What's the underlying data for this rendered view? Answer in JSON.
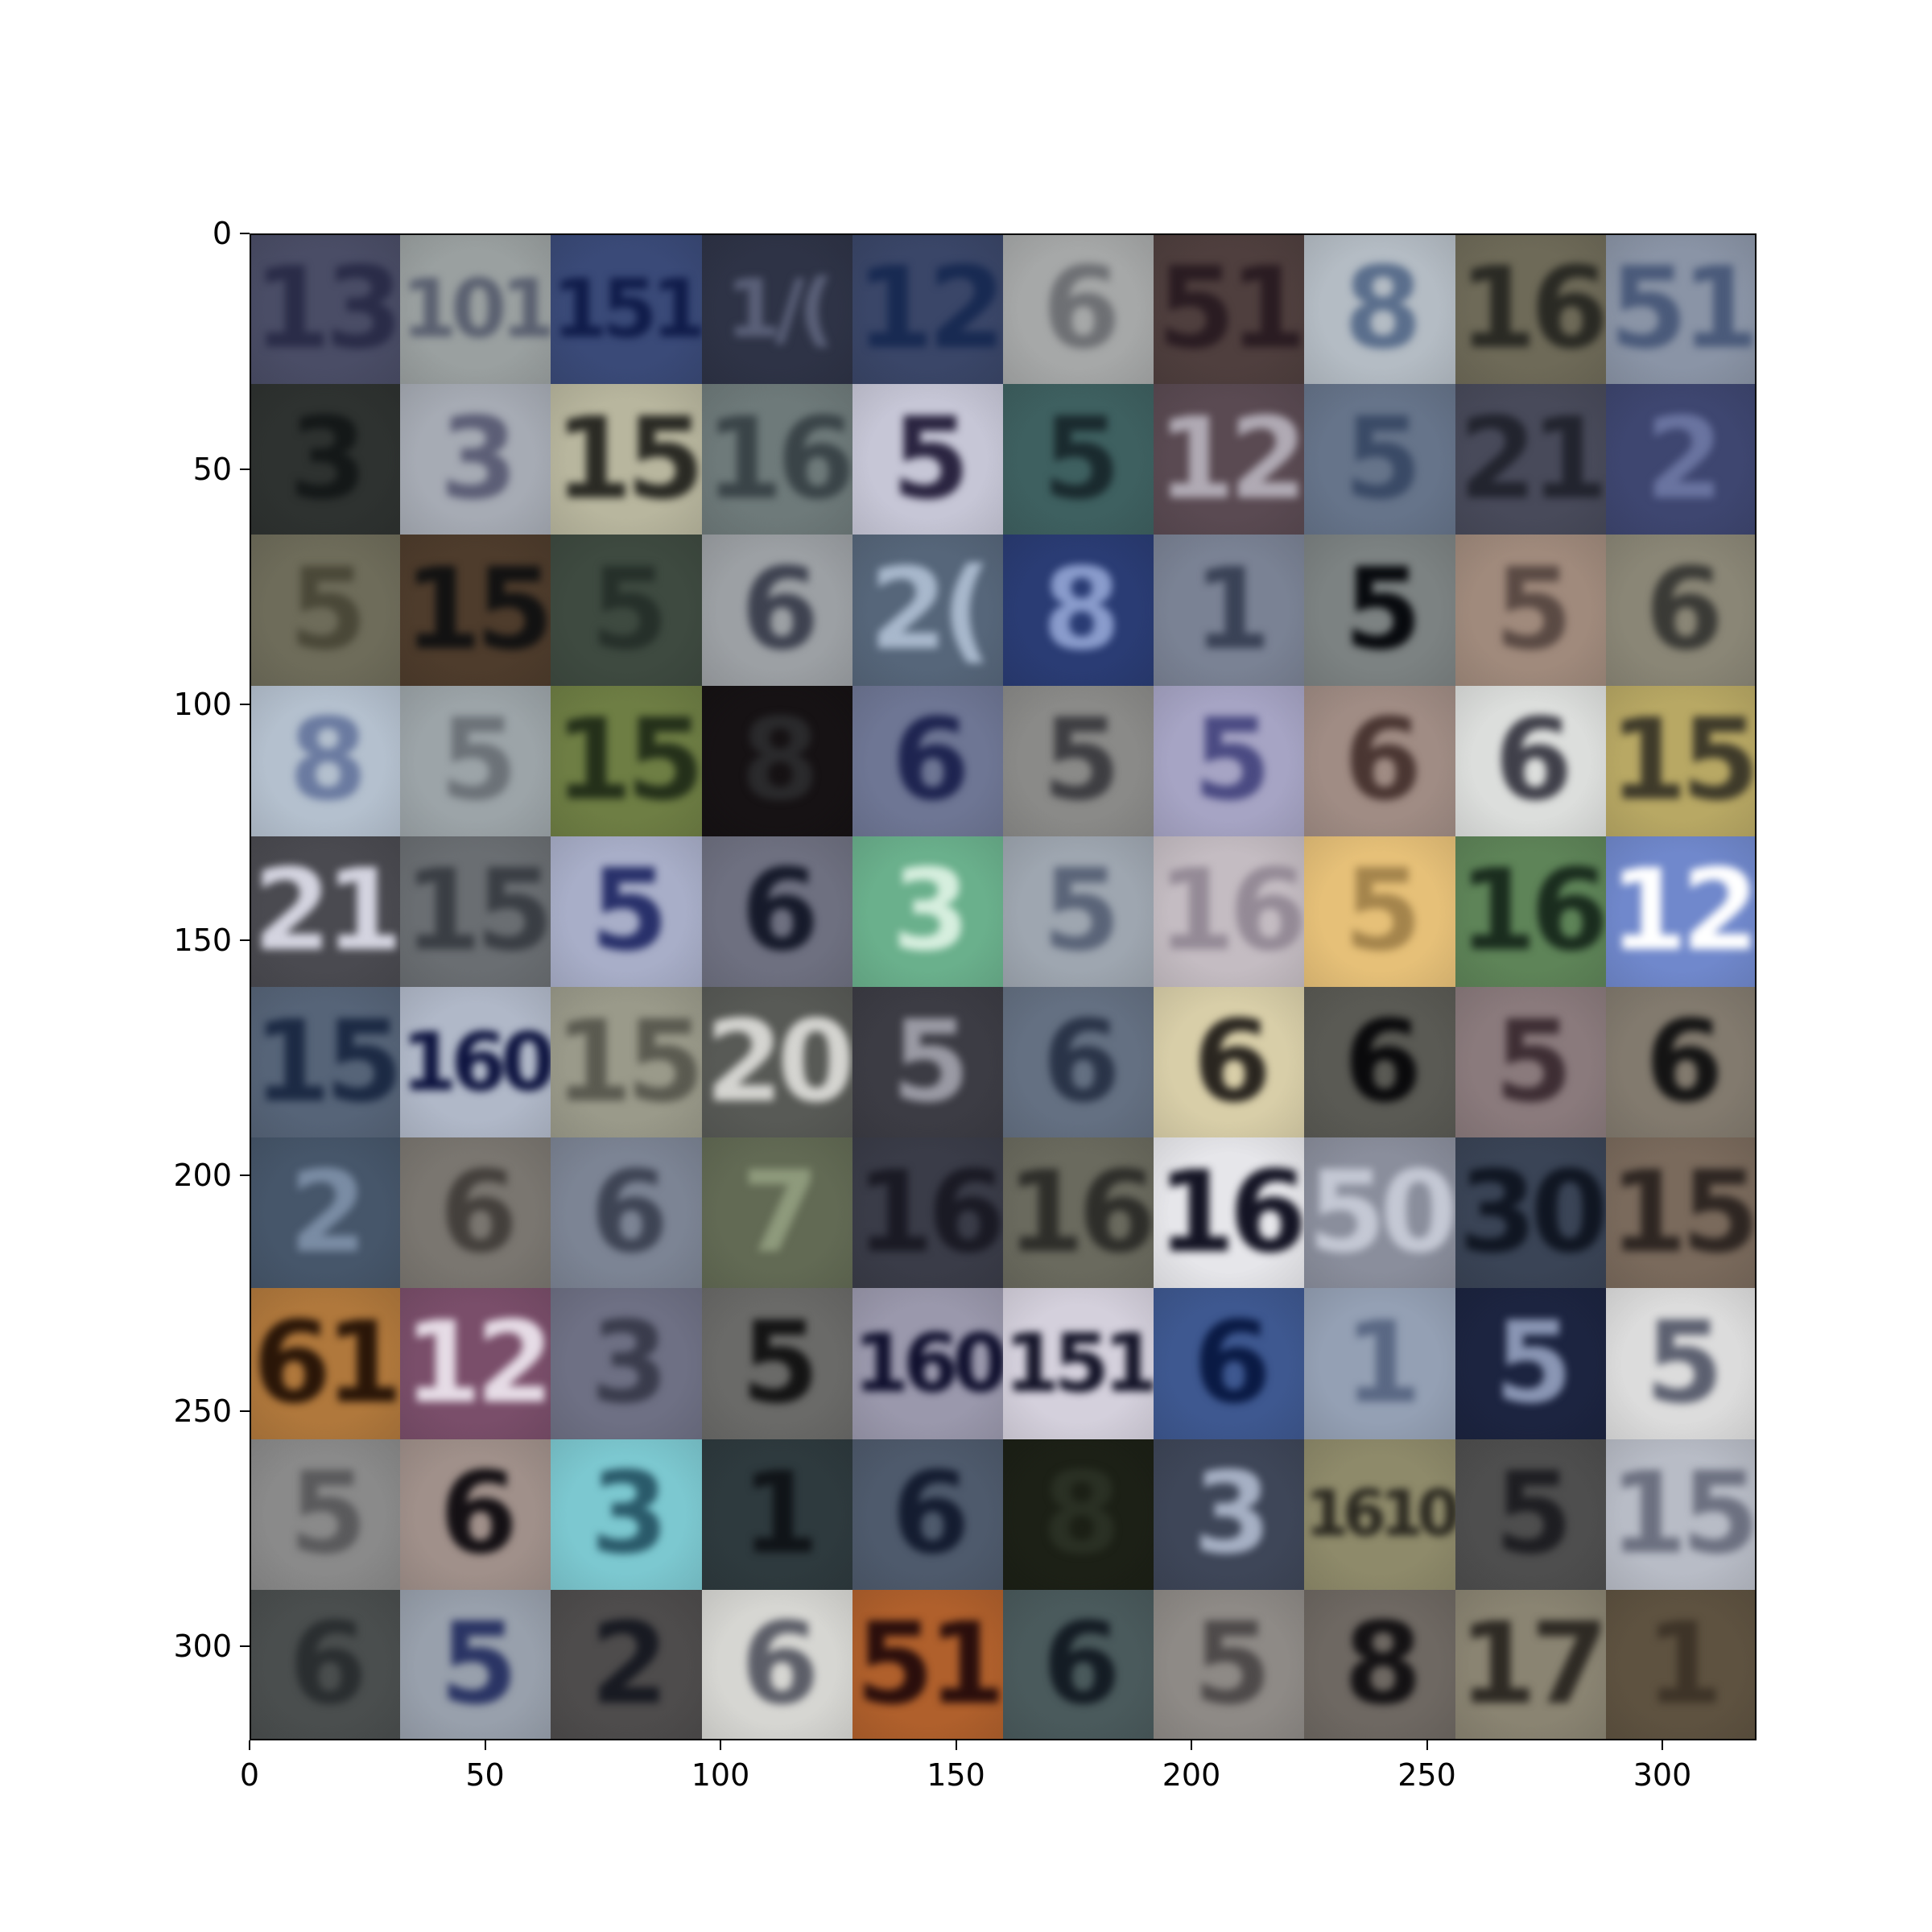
{
  "image": {
    "rows": 10,
    "cols": 10,
    "description_colors_note": "dominant background and digit colors per tile",
    "tiles": [
      [
        {
          "digits": "13",
          "bg": "#4a4d66",
          "fg": "#2a2c48"
        },
        {
          "digits": "101",
          "bg": "#9aa0a0",
          "fg": "#5a6070"
        },
        {
          "digits": "151",
          "bg": "#3a4a78",
          "fg": "#101c4a"
        },
        {
          "digits": "1/(",
          "bg": "#2e3346",
          "fg": "#5a6078"
        },
        {
          "digits": "12",
          "bg": "#3a4668",
          "fg": "#182a52"
        },
        {
          "digits": "6",
          "bg": "#a6a8a8",
          "fg": "#6e7074"
        },
        {
          "digits": "51",
          "bg": "#4f3f3e",
          "fg": "#2a1c22"
        },
        {
          "digits": "8",
          "bg": "#b4bcc4",
          "fg": "#5a6e8c"
        },
        {
          "digits": "16",
          "bg": "#6e6a58",
          "fg": "#2a2a24"
        },
        {
          "digits": "51",
          "bg": "#8a94a6",
          "fg": "#4a5a7a"
        }
      ],
      [
        {
          "digits": "3",
          "bg": "#2e3230",
          "fg": "#141818"
        },
        {
          "digits": "3",
          "bg": "#a6abb4",
          "fg": "#5c5e76"
        },
        {
          "digits": "15",
          "bg": "#b8b69e",
          "fg": "#2a2a24"
        },
        {
          "digits": "16",
          "bg": "#6e7a7a",
          "fg": "#3a4448"
        },
        {
          "digits": "5",
          "bg": "#c6c6d6",
          "fg": "#2a2440"
        },
        {
          "digits": "5",
          "bg": "#3e6060",
          "fg": "#1a2a2e"
        },
        {
          "digits": "12",
          "bg": "#5a4a52",
          "fg": "#b0aab4"
        },
        {
          "digits": "5",
          "bg": "#66748a",
          "fg": "#3a4a66"
        },
        {
          "digits": "21",
          "bg": "#484a5a",
          "fg": "#22242e"
        },
        {
          "digits": "2",
          "bg": "#3e4670",
          "fg": "#6a74a0"
        }
      ],
      [
        {
          "digits": "5",
          "bg": "#6e6c5a",
          "fg": "#4a4838"
        },
        {
          "digits": "15",
          "bg": "#4e3c2c",
          "fg": "#121212"
        },
        {
          "digits": "5",
          "bg": "#3e4a40",
          "fg": "#26302a"
        },
        {
          "digits": "6",
          "bg": "#9ca0a4",
          "fg": "#3e4250"
        },
        {
          "digits": "2(",
          "bg": "#56667a",
          "fg": "#a8b8cc"
        },
        {
          "digits": "8",
          "bg": "#2a3c74",
          "fg": "#8a9ccc"
        },
        {
          "digits": "1",
          "bg": "#7a8294",
          "fg": "#3a4256"
        },
        {
          "digits": "5",
          "bg": "#7c8282",
          "fg": "#080a0e"
        },
        {
          "digits": "5",
          "bg": "#a08a7c",
          "fg": "#5a4a44"
        },
        {
          "digits": "6",
          "bg": "#8a8676",
          "fg": "#3a3a36"
        }
      ],
      [
        {
          "digits": "8",
          "bg": "#b4c0ce",
          "fg": "#6a7aa0"
        },
        {
          "digits": "5",
          "bg": "#9ca4a8",
          "fg": "#6c7278"
        },
        {
          "digits": "15",
          "bg": "#6e7e44",
          "fg": "#24301a"
        },
        {
          "digits": "8",
          "bg": "#161214",
          "fg": "#2a2a2c"
        },
        {
          "digits": "6",
          "bg": "#6e7694",
          "fg": "#1e2450"
        },
        {
          "digits": "5",
          "bg": "#8a8a88",
          "fg": "#3e3e42"
        },
        {
          "digits": "5",
          "bg": "#a6a4c4",
          "fg": "#4a4a82"
        },
        {
          "digits": "6",
          "bg": "#a08c84",
          "fg": "#4a3632"
        },
        {
          "digits": "6",
          "bg": "#dcdedc",
          "fg": "#40404a"
        },
        {
          "digits": "15",
          "bg": "#b8a864",
          "fg": "#3e3a2a"
        }
      ],
      [
        {
          "digits": "21",
          "bg": "#4a4a50",
          "fg": "#d4d4e0"
        },
        {
          "digits": "15",
          "bg": "#6a6e72",
          "fg": "#3a3e44"
        },
        {
          "digits": "5",
          "bg": "#a8aec8",
          "fg": "#28306a"
        },
        {
          "digits": "6",
          "bg": "#6e7080",
          "fg": "#161a2a"
        },
        {
          "digits": "3",
          "bg": "#6ab08c",
          "fg": "#d6eede"
        },
        {
          "digits": "5",
          "bg": "#9ea6b0",
          "fg": "#5a6478"
        },
        {
          "digits": "16",
          "bg": "#c4bcc2",
          "fg": "#948a96"
        },
        {
          "digits": "5",
          "bg": "#e6c078",
          "fg": "#a4844c"
        },
        {
          "digits": "16",
          "bg": "#5e8458",
          "fg": "#1a2c1e"
        },
        {
          "digits": "12",
          "bg": "#7088cc",
          "fg": "#ffffff"
        }
      ],
      [
        {
          "digits": "15",
          "bg": "#566478",
          "fg": "#1c2a44"
        },
        {
          "digits": "160",
          "bg": "#b0b8c8",
          "fg": "#0e1440"
        },
        {
          "digits": "15",
          "bg": "#9a9a8a",
          "fg": "#5a5a50"
        },
        {
          "digits": "20",
          "bg": "#585a56",
          "fg": "#d4d4d0"
        },
        {
          "digits": "5",
          "bg": "#3c3c44",
          "fg": "#9a9aa4"
        },
        {
          "digits": "6",
          "bg": "#647082",
          "fg": "#2a3448"
        },
        {
          "digits": "6",
          "bg": "#d8cea8",
          "fg": "#2a2620"
        },
        {
          "digits": "6",
          "bg": "#5a5a54",
          "fg": "#0a0a0c"
        },
        {
          "digits": "5",
          "bg": "#8a7a7c",
          "fg": "#3e2e34"
        },
        {
          "digits": "6",
          "bg": "#827a6e",
          "fg": "#141414"
        }
      ],
      [
        {
          "digits": "2",
          "bg": "#46566a",
          "fg": "#7a8ca4"
        },
        {
          "digits": "6",
          "bg": "#7a7670",
          "fg": "#44403c"
        },
        {
          "digits": "6",
          "bg": "#7c8494",
          "fg": "#3e4454"
        },
        {
          "digits": "7",
          "bg": "#626a54",
          "fg": "#8e9a7c"
        },
        {
          "digits": "16",
          "bg": "#3a3c48",
          "fg": "#1a1a24"
        },
        {
          "digits": "16",
          "bg": "#6a6a5e",
          "fg": "#2e2e2a"
        },
        {
          "digits": "16",
          "bg": "#e6e6ea",
          "fg": "#141424"
        },
        {
          "digits": "50",
          "bg": "#8a8e9c",
          "fg": "#c4c8d4"
        },
        {
          "digits": "30",
          "bg": "#3a4456",
          "fg": "#101622"
        },
        {
          "digits": "15",
          "bg": "#7a6a5c",
          "fg": "#2e2622"
        }
      ],
      [
        {
          "digits": "61",
          "bg": "#b0783c",
          "fg": "#2a1608"
        },
        {
          "digits": "12",
          "bg": "#7a4e6a",
          "fg": "#e6dce6"
        },
        {
          "digits": "3",
          "bg": "#6e7084",
          "fg": "#3a3c4c"
        },
        {
          "digits": "5",
          "bg": "#6a6a68",
          "fg": "#141414"
        },
        {
          "digits": "160",
          "bg": "#9a98ac",
          "fg": "#10102e"
        },
        {
          "digits": "151",
          "bg": "#d4d0dc",
          "fg": "#141428"
        },
        {
          "digits": "6",
          "bg": "#3e5890",
          "fg": "#0a1a44"
        },
        {
          "digits": "1",
          "bg": "#94a0b4",
          "fg": "#5a6884"
        },
        {
          "digits": "5",
          "bg": "#1c2440",
          "fg": "#8a96b4"
        },
        {
          "digits": "5",
          "bg": "#dcdcdc",
          "fg": "#5c6070"
        }
      ],
      [
        {
          "digits": "5",
          "bg": "#8a8a8a",
          "fg": "#5a5a5c"
        },
        {
          "digits": "6",
          "bg": "#a0908a",
          "fg": "#141014"
        },
        {
          "digits": "3",
          "bg": "#7cc8d0",
          "fg": "#2a5a6a"
        },
        {
          "digits": "1",
          "bg": "#2e3a3e",
          "fg": "#101418"
        },
        {
          "digits": "6",
          "bg": "#4e5a6c",
          "fg": "#141c30"
        },
        {
          "digits": "8",
          "bg": "#1c2016",
          "fg": "#2a3024"
        },
        {
          "digits": "3",
          "bg": "#3e4658",
          "fg": "#a6b0c4"
        },
        {
          "digits": "1610",
          "bg": "#8e8a6a",
          "fg": "#2a2820"
        },
        {
          "digits": "5",
          "bg": "#4e4e4e",
          "fg": "#1e1e22"
        },
        {
          "digits": "15",
          "bg": "#b8bcc6",
          "fg": "#6c7080"
        }
      ],
      [
        {
          "digits": "6",
          "bg": "#4a4e4e",
          "fg": "#2a2e30"
        },
        {
          "digits": "5",
          "bg": "#98a0ac",
          "fg": "#2a3464"
        },
        {
          "digits": "2",
          "bg": "#4e4c4c",
          "fg": "#181a22"
        },
        {
          "digits": "6",
          "bg": "#d6d6d2",
          "fg": "#5c5e68"
        },
        {
          "digits": "51",
          "bg": "#b0602c",
          "fg": "#2a0e0c"
        },
        {
          "digits": "6",
          "bg": "#4a5a5c",
          "fg": "#141c24"
        },
        {
          "digits": "5",
          "bg": "#8e8a86",
          "fg": "#4e4a4a"
        },
        {
          "digits": "8",
          "bg": "#6e6862",
          "fg": "#141214"
        },
        {
          "digits": "17",
          "bg": "#8a8472",
          "fg": "#2e2a24"
        },
        {
          "digits": "1",
          "bg": "#5e5240",
          "fg": "#3e3428"
        }
      ]
    ]
  },
  "axes": {
    "xlim": [
      0,
      320
    ],
    "ylim": [
      320,
      0
    ],
    "yticks": [
      {
        "value": 0,
        "label": "0"
      },
      {
        "value": 50,
        "label": "50"
      },
      {
        "value": 100,
        "label": "100"
      },
      {
        "value": 150,
        "label": "150"
      },
      {
        "value": 200,
        "label": "200"
      },
      {
        "value": 250,
        "label": "250"
      },
      {
        "value": 300,
        "label": "300"
      }
    ],
    "xticks": [
      {
        "value": 0,
        "label": "0"
      },
      {
        "value": 50,
        "label": "50"
      },
      {
        "value": 100,
        "label": "100"
      },
      {
        "value": 150,
        "label": "150"
      },
      {
        "value": 200,
        "label": "200"
      },
      {
        "value": 250,
        "label": "250"
      },
      {
        "value": 300,
        "label": "300"
      }
    ]
  }
}
